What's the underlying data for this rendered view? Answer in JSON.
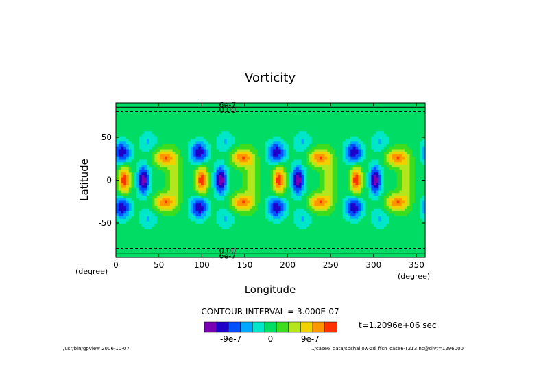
{
  "chart_data": {
    "type": "heatmap",
    "title": "Vorticity",
    "xlabel": "Longitude",
    "ylabel": "Latitude",
    "x_unit": "(degree)",
    "y_unit": "(degree)",
    "xlim": [
      0,
      360
    ],
    "ylim": [
      -90,
      90
    ],
    "x_ticks": [
      0,
      50,
      100,
      150,
      200,
      250,
      300,
      350
    ],
    "y_ticks": [
      50,
      0,
      -50
    ],
    "contour_interval_label": "CONTOUR INTERVAL = 3.000E-07",
    "time_label": "t=1.2096e+06 sec",
    "colorbar": {
      "colors": [
        "#7a00b4",
        "#1e00c8",
        "#0050ff",
        "#00a8ff",
        "#00e6c8",
        "#00dc64",
        "#3cdc1e",
        "#b4e61e",
        "#f0d200",
        "#ff9600",
        "#ff3200"
      ],
      "tick_labels": [
        "-9e-7",
        "0",
        "9e-7"
      ],
      "min": -1.5e-06,
      "max": 1.5e-06
    },
    "contour_labels": [
      "6e-7",
      "0.00",
      "0.00",
      "6e-7"
    ],
    "pattern": {
      "wave_number": 4,
      "phase_deg": 10,
      "equatorial_peak": 1.5e-06,
      "equatorial_trough": -1.5e-06,
      "midlatitude_peak": 1.2e-06,
      "midlatitude_trough": -1.2e-06,
      "background": 0
    }
  },
  "footer": {
    "left": "/usr/bin/gpview  2006-10-07",
    "right": "../case6_data/spshallow-zd_ffcn_case6-T213.nc@divt=1296000"
  }
}
